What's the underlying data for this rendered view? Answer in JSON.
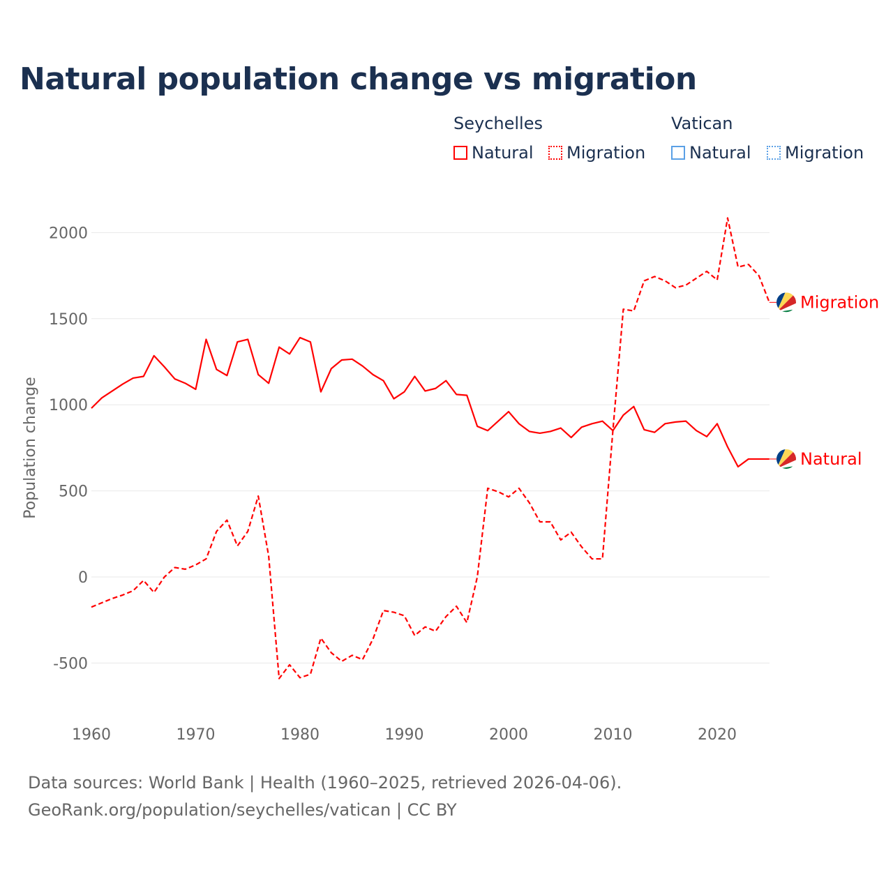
{
  "title": "Natural population change vs migration",
  "legend": {
    "groups": [
      {
        "name": "Seychelles",
        "items": [
          {
            "label": "Natural",
            "style": "solid",
            "color": "#ff0000"
          },
          {
            "label": "Migration",
            "style": "dotted",
            "color": "#ff0000"
          }
        ]
      },
      {
        "name": "Vatican",
        "items": [
          {
            "label": "Natural",
            "style": "solid",
            "color": "#5aa0e6"
          },
          {
            "label": "Migration",
            "style": "dotted",
            "color": "#5aa0e6"
          }
        ]
      }
    ]
  },
  "footer": {
    "line1": "Data sources: World Bank | Health (1960–2025, retrieved 2026-04-06).",
    "line2": "GeoRank.org/population/seychelles/vatican | CC BY"
  },
  "colors": {
    "seychelles": "#ff0000",
    "vatican": "#5aa0e6",
    "grid": "#e8e8e8",
    "tick": "#666666"
  },
  "chart_data": {
    "type": "line",
    "title": "Natural population change vs migration",
    "xlabel": "",
    "ylabel": "Population change",
    "xlim": [
      1960,
      2025
    ],
    "ylim": [
      -750,
      2150
    ],
    "xticks": [
      1960,
      1970,
      1980,
      1990,
      2000,
      2010,
      2020
    ],
    "yticks": [
      -500,
      0,
      500,
      1000,
      1500,
      2000
    ],
    "ytick_labels": [
      "-500",
      "0",
      "500",
      "1000",
      "1500",
      "2000"
    ],
    "grid": true,
    "legend_position": "top-right",
    "x_start": 1960,
    "series": [
      {
        "name": "Seychelles Natural",
        "end_label": "Natural",
        "style": "solid",
        "color": "#ff0000",
        "values": [
          980,
          1040,
          1080,
          1120,
          1155,
          1165,
          1285,
          1220,
          1150,
          1125,
          1090,
          1380,
          1205,
          1170,
          1365,
          1380,
          1175,
          1125,
          1335,
          1295,
          1390,
          1365,
          1075,
          1210,
          1260,
          1265,
          1225,
          1175,
          1140,
          1035,
          1075,
          1165,
          1080,
          1095,
          1140,
          1060,
          1055,
          875,
          850,
          905,
          960,
          890,
          845,
          835,
          845,
          865,
          810,
          870,
          890,
          905,
          850,
          940,
          990,
          855,
          840,
          890,
          900,
          905,
          850,
          815,
          890,
          755,
          640,
          685,
          685,
          685
        ]
      },
      {
        "name": "Seychelles Migration",
        "end_label": "Migration",
        "style": "dashed",
        "color": "#ff0000",
        "values": [
          -175,
          -150,
          -125,
          -105,
          -80,
          -20,
          -90,
          0,
          55,
          45,
          70,
          105,
          265,
          330,
          180,
          265,
          470,
          120,
          -590,
          -510,
          -585,
          -565,
          -355,
          -440,
          -490,
          -455,
          -480,
          -360,
          -195,
          -205,
          -225,
          -340,
          -290,
          -315,
          -230,
          -170,
          -265,
          0,
          515,
          495,
          465,
          515,
          430,
          320,
          320,
          215,
          260,
          175,
          105,
          105,
          850,
          1555,
          1545,
          1720,
          1745,
          1720,
          1680,
          1695,
          1735,
          1775,
          1725,
          2085,
          1800,
          1815,
          1750,
          1595
        ]
      }
    ]
  }
}
